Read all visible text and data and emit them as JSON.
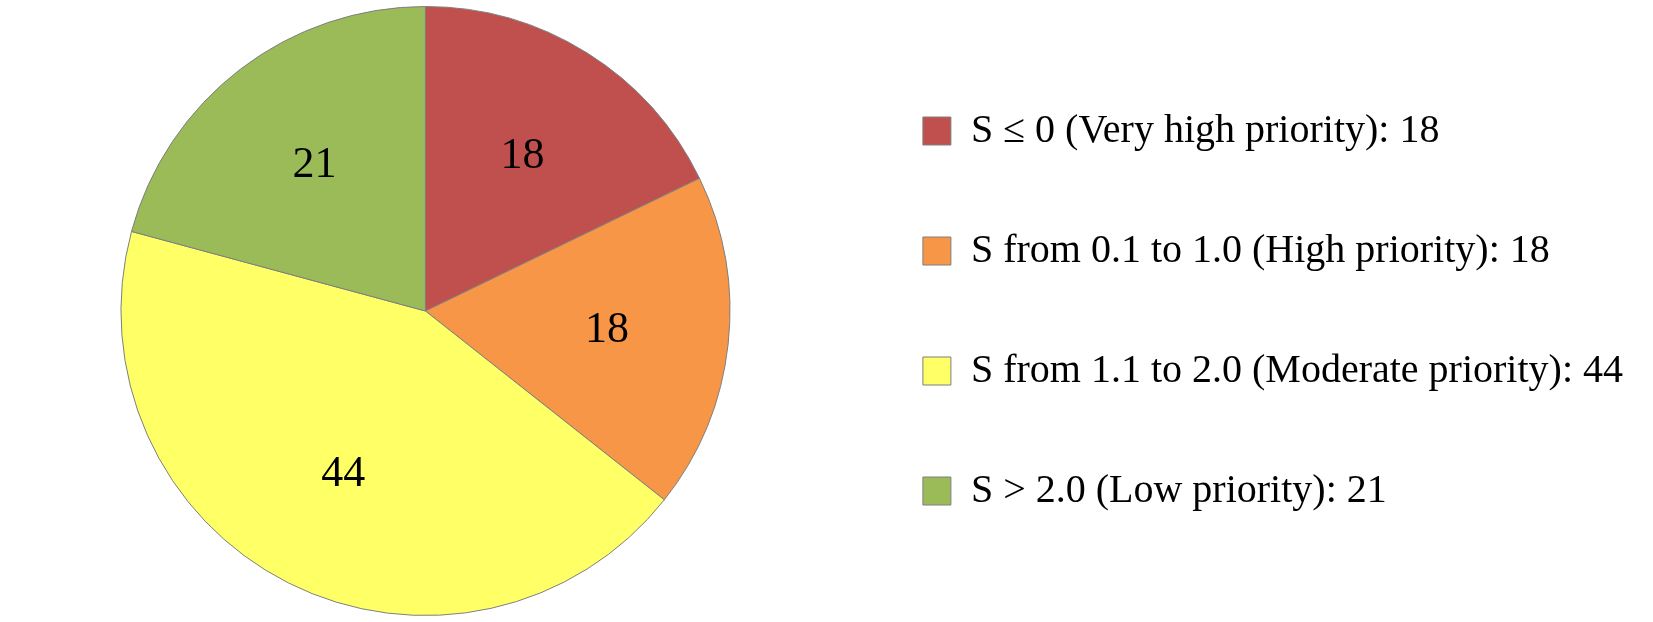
{
  "chart_data": {
    "type": "pie",
    "categories": [
      "S ≤ 0 (Very high priority): 18",
      "S from 0.1 to 1.0 (High priority): 18",
      "S from 1.1 to 2.0 (Moderate priority): 44",
      "S > 2.0 (Low priority): 21"
    ],
    "values": [
      18,
      18,
      44,
      21
    ],
    "colors": [
      "#c0504d",
      "#f79646",
      "#ffff66",
      "#9bbb59"
    ],
    "data_labels": true,
    "legend": "right"
  }
}
